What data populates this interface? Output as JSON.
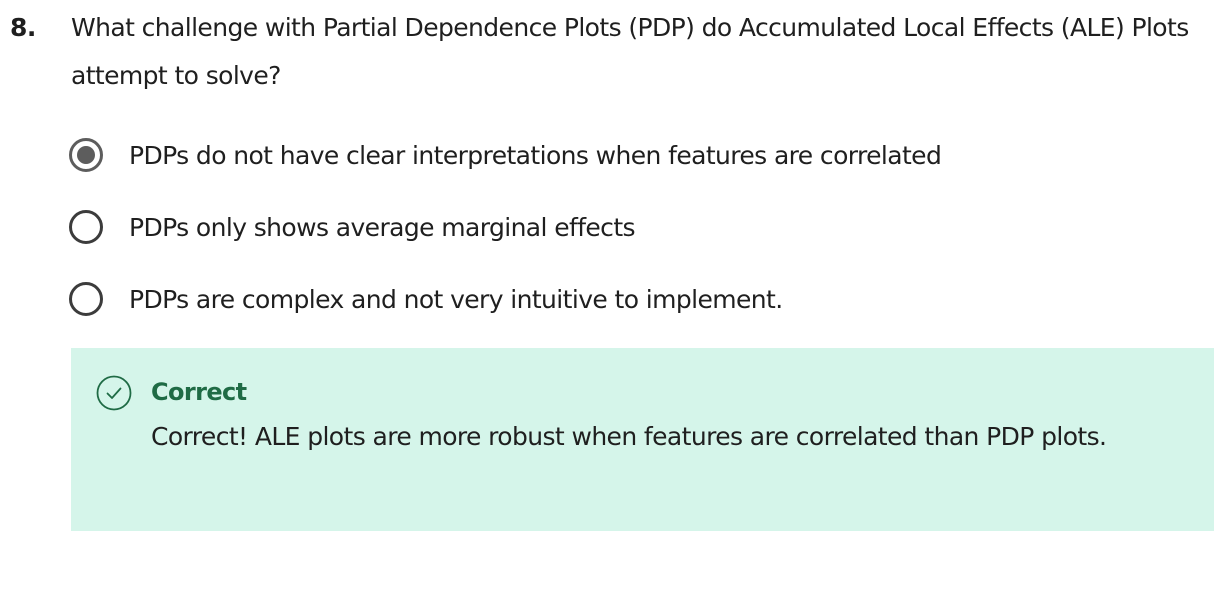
{
  "question": {
    "number": "8.",
    "text": "What challenge with Partial Dependence Plots (PDP) do Accumulated Local Effects (ALE) Plots attempt to solve?"
  },
  "options": [
    {
      "label": "PDPs do not have clear interpretations when features are correlated",
      "selected": true
    },
    {
      "label": "PDPs only shows average marginal effects",
      "selected": false
    },
    {
      "label": "PDPs are complex and not very intuitive to implement.",
      "selected": false
    }
  ],
  "feedback": {
    "status": "Correct",
    "message": "Correct! ALE plots are more robust when features are correlated than PDP plots.",
    "icon": "check-circle-icon",
    "background_color": "#d5f5ea",
    "accent_color": "#1f6b45"
  }
}
